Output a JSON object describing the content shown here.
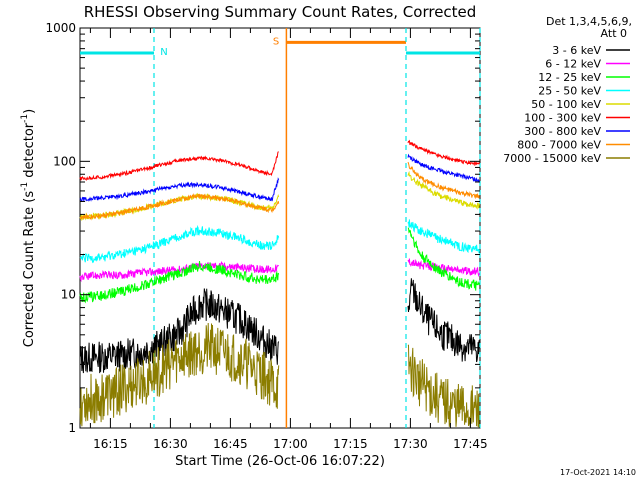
{
  "chart_data": {
    "type": "line",
    "title": "RHESSI Observing Summary Count Rates, Corrected",
    "xlabel": "Start Time (26-Oct-06 16:07:22)",
    "ylabel_parts": [
      "Corrected Count Rate (s",
      "-1",
      " detector",
      "-1",
      ")"
    ],
    "yscale": "log",
    "ylim": [
      1,
      1000
    ],
    "xlim_minutes": [
      0,
      100
    ],
    "x_unit": "minutes after 16:07:22",
    "x_ticks": [
      {
        "label": "16:15",
        "minutes": 7.6
      },
      {
        "label": "16:30",
        "minutes": 22.6
      },
      {
        "label": "16:45",
        "minutes": 37.6
      },
      {
        "label": "17:00",
        "minutes": 52.6
      },
      {
        "label": "17:15",
        "minutes": 67.6
      },
      {
        "label": "17:30",
        "minutes": 82.6
      },
      {
        "label": "17:45",
        "minutes": 97.6
      }
    ],
    "y_ticks": [
      {
        "label": "1",
        "value": 1
      },
      {
        "label": "10",
        "value": 10
      },
      {
        "label": "100",
        "value": 100
      },
      {
        "label": "1000",
        "value": 1000
      }
    ],
    "legend": {
      "header": [
        "Det 1,3,4,5,6,9,",
        "Att 0"
      ],
      "placement": "right"
    },
    "time_gaps": [
      {
        "start": 49.7,
        "end": 81.5
      }
    ],
    "markers": [
      {
        "label": "N",
        "color": "#00e5e5",
        "bars": [
          [
            0,
            18.5
          ],
          [
            81.5,
            100
          ]
        ],
        "level": 650,
        "label_x": 21.0
      },
      {
        "label": "S",
        "color": "#ff7f00",
        "bars": [
          [
            51.6,
            81.5
          ]
        ],
        "level": 780,
        "label_x": 49.0
      }
    ],
    "dashed_lines": [
      {
        "x": 18.5,
        "color": "#00e5e5"
      },
      {
        "x": 81.5,
        "color": "#00e5e5"
      },
      {
        "x": 100,
        "color": "#00e5e5"
      }
    ],
    "solid_lines": [
      {
        "x": 51.6,
        "color": "#ff7f00"
      }
    ],
    "series": [
      {
        "name": "3 - 6 keV",
        "color": "#000000",
        "x": [
          0,
          5,
          10,
          15,
          20,
          25,
          27,
          30,
          33,
          36,
          40,
          43,
          46,
          48,
          49.7,
          82,
          83,
          85,
          87,
          90,
          95,
          100
        ],
        "y": [
          3.3,
          3.4,
          3.5,
          3.7,
          4.2,
          5.2,
          6.5,
          8.5,
          8.3,
          7.5,
          6.5,
          5.5,
          4.5,
          4.0,
          3.8,
          7.5,
          11,
          8.0,
          6.5,
          5.2,
          4.2,
          3.8
        ]
      },
      {
        "name": "6 - 12 keV",
        "color": "#ff00ff",
        "x": [
          0,
          5,
          10,
          15,
          20,
          25,
          30,
          35,
          40,
          45,
          48,
          49.7,
          82,
          85,
          90,
          95,
          100
        ],
        "y": [
          13.5,
          14,
          14,
          14.5,
          15,
          15.5,
          16.5,
          16.5,
          16,
          15.5,
          15.5,
          16,
          18,
          16.5,
          16,
          15.2,
          14.8
        ]
      },
      {
        "name": "12 - 25 keV",
        "color": "#00ff00",
        "x": [
          0,
          5,
          10,
          15,
          20,
          25,
          30,
          35,
          40,
          45,
          48,
          49.7,
          82,
          85,
          90,
          95,
          100
        ],
        "y": [
          9.5,
          9.8,
          10.5,
          11.5,
          13,
          14.5,
          16.5,
          15.5,
          14,
          13,
          13,
          14,
          32,
          20,
          15,
          12.5,
          11.5
        ]
      },
      {
        "name": "25 - 50 keV",
        "color": "#00ffff",
        "x": [
          0,
          5,
          10,
          15,
          20,
          25,
          30,
          35,
          40,
          45,
          48,
          49.7,
          82,
          85,
          90,
          95,
          100
        ],
        "y": [
          18.5,
          19,
          20,
          21.5,
          24,
          27.5,
          30.5,
          29,
          26.5,
          23.5,
          23,
          27,
          35,
          30,
          26,
          23,
          22
        ]
      },
      {
        "name": "50 - 100 keV",
        "color": "#dcdc00",
        "x": [
          0,
          5,
          10,
          15,
          20,
          25,
          30,
          35,
          40,
          45,
          48,
          49.7,
          82,
          85,
          90,
          95,
          100
        ],
        "y": [
          38,
          39,
          41,
          44,
          48,
          52,
          55,
          53,
          49,
          45,
          44,
          55,
          80,
          66,
          55,
          49,
          46
        ]
      },
      {
        "name": "100 - 300 keV",
        "color": "#ff0000",
        "x": [
          0,
          5,
          10,
          15,
          20,
          25,
          30,
          35,
          40,
          45,
          48,
          49.7,
          82,
          85,
          90,
          95,
          100
        ],
        "y": [
          74,
          76,
          80,
          86,
          94,
          102,
          106,
          102,
          94,
          84,
          80,
          120,
          140,
          125,
          110,
          100,
          95
        ]
      },
      {
        "name": "300 - 800 keV",
        "color": "#0000ff",
        "x": [
          0,
          5,
          10,
          15,
          20,
          25,
          30,
          35,
          40,
          45,
          48,
          49.7,
          82,
          85,
          90,
          95,
          100
        ],
        "y": [
          52,
          53,
          55,
          58,
          62,
          66,
          67,
          64,
          59,
          54,
          52,
          75,
          110,
          95,
          85,
          78,
          72
        ]
      },
      {
        "name": "800 - 7000 keV",
        "color": "#ff8c00",
        "x": [
          0,
          5,
          10,
          15,
          20,
          25,
          30,
          35,
          40,
          45,
          48,
          49.7,
          82,
          85,
          90,
          95,
          100
        ],
        "y": [
          38,
          39,
          41,
          44,
          48,
          52,
          55,
          53,
          49,
          45,
          43,
          50,
          95,
          75,
          64,
          58,
          54
        ]
      },
      {
        "name": "7000 - 15000 keV",
        "color": "#8b7d00",
        "x": [
          0,
          5,
          10,
          15,
          20,
          25,
          30,
          35,
          40,
          45,
          48,
          49.7,
          82,
          85,
          90,
          95,
          100
        ],
        "y": [
          1.6,
          1.7,
          1.9,
          2.2,
          2.7,
          3.4,
          4.0,
          3.8,
          3.3,
          2.6,
          2.2,
          2.0,
          3.0,
          2.2,
          1.6,
          1.4,
          1.3
        ]
      }
    ],
    "footer": "17-Oct-2021 14:10"
  }
}
